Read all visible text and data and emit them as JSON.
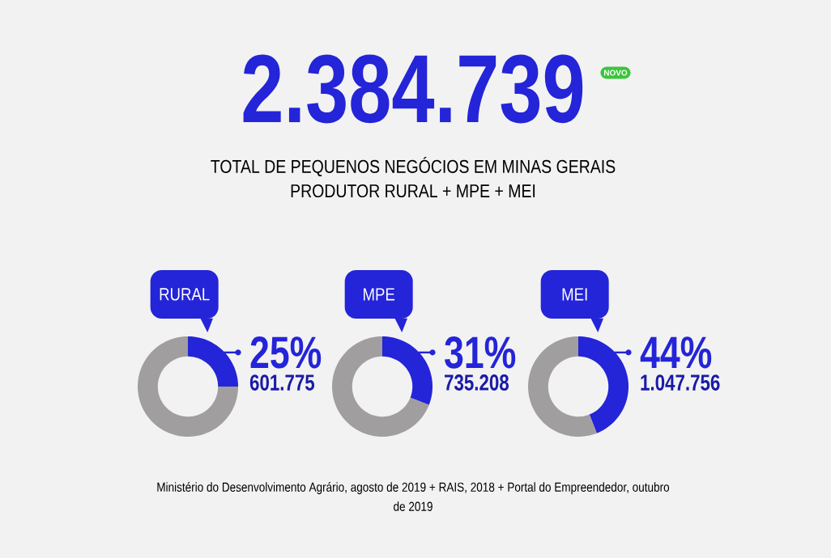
{
  "chart_data": [
    {
      "type": "other",
      "title": "2.384.739",
      "subtitle": "TOTAL DE PEQUENOS NEGÓCIOS EM MINAS GERAIS",
      "annotations": [
        "NOVO",
        "PRODUTOR RURAL + MPE + MEI",
        "Ministério do Desenvolvimento Agrário, agosto de 2019 + RAIS, 2018 + Portal do Empreendedor, outubro de 2019"
      ]
    },
    {
      "type": "donut",
      "title": "RURAL",
      "categories": [
        null,
        null
      ],
      "values": [
        25,
        75
      ],
      "colors": [
        "#2424d8",
        "#a09e9e"
      ],
      "value_labels": [
        "25%",
        null
      ],
      "annotations": [
        "601.775"
      ]
    },
    {
      "type": "donut",
      "title": "MPE",
      "categories": [
        null,
        null
      ],
      "values": [
        31,
        69
      ],
      "colors": [
        "#2424d8",
        "#a09e9e"
      ],
      "value_labels": [
        "31%",
        null
      ],
      "annotations": [
        "735.208"
      ]
    },
    {
      "type": "donut",
      "title": "MEI",
      "categories": [
        null,
        null
      ],
      "values": [
        44,
        56
      ],
      "colors": [
        "#2424d8",
        "#a09e9e"
      ],
      "value_labels": [
        "44%",
        null
      ],
      "annotations": [
        "1.047.756"
      ]
    }
  ]
}
